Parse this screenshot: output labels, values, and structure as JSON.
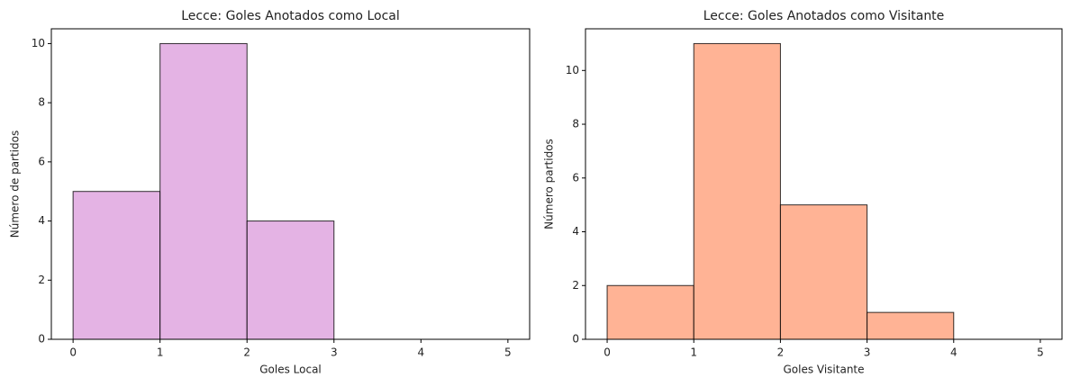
{
  "chart_data": [
    {
      "type": "histogram",
      "title": "Lecce: Goles Anotados como Local",
      "x_label": "Goles Local",
      "y_label": "Número de partidos",
      "bins": [
        0,
        1,
        2,
        3,
        4,
        5
      ],
      "values": [
        5,
        10,
        4,
        0,
        0
      ],
      "color": "#dda0dd",
      "edgecolor": "#000000",
      "opacity": 0.8,
      "xlim": [
        -0.25,
        5.25
      ],
      "xticks": [
        0,
        1,
        2,
        3,
        4,
        5
      ],
      "ylim": [
        0,
        10.5
      ],
      "yticks": [
        0,
        2,
        4,
        6,
        8,
        10
      ]
    },
    {
      "type": "histogram",
      "title": "Lecce: Goles Anotados como Visitante",
      "x_label": "Goles Visitante",
      "y_label": "Número partidos",
      "bins": [
        0,
        1,
        2,
        3,
        4,
        5
      ],
      "values": [
        2,
        11,
        5,
        1,
        0
      ],
      "color": "#ffa07a",
      "edgecolor": "#000000",
      "opacity": 0.8,
      "xlim": [
        -0.25,
        5.25
      ],
      "xticks": [
        0,
        1,
        2,
        3,
        4,
        5
      ],
      "ylim": [
        0,
        11.55
      ],
      "yticks": [
        0,
        2,
        4,
        6,
        8,
        10
      ]
    }
  ]
}
